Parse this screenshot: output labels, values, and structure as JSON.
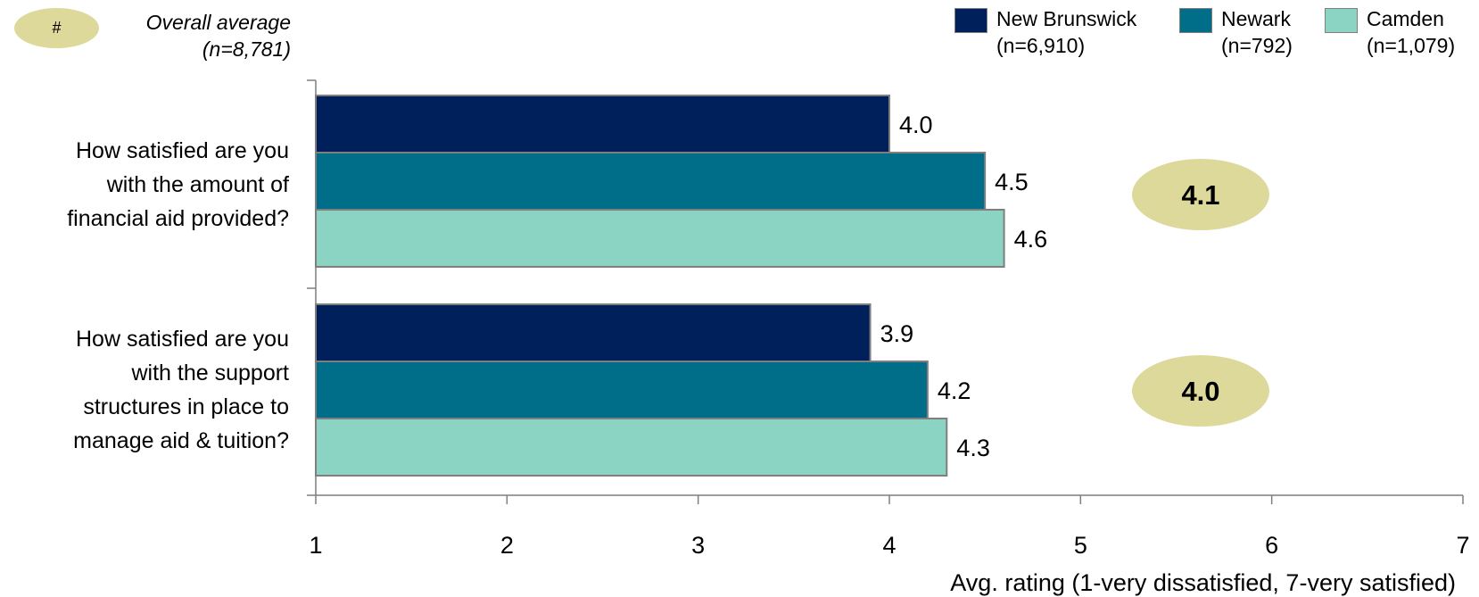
{
  "avg_key": {
    "symbol": "#",
    "label_line1": "Overall average",
    "label_line2": "(n=8,781)"
  },
  "legend": [
    {
      "name": "New Brunswick",
      "n": "(n=6,910)",
      "color": "#00205b"
    },
    {
      "name": "Newark",
      "n": "(n=792)",
      "color": "#006e89"
    },
    {
      "name": "Camden",
      "n": "(n=1,079)",
      "color": "#8bd3c3"
    }
  ],
  "colors": {
    "avg_ellipse": "#ddd99a",
    "bar_border": "#7f7f7f",
    "axis": "#7f7f7f"
  },
  "chart_data": {
    "type": "bar",
    "orientation": "horizontal",
    "categories": [
      "How satisfied are you with the amount of financial aid provided?",
      "How satisfied are you with the support structures in place to manage aid & tuition?"
    ],
    "category_lines": [
      [
        "How satisfied are you",
        "with the amount of",
        "financial aid provided?"
      ],
      [
        "How satisfied are you",
        "with the support",
        "structures in place to",
        "manage aid & tuition?"
      ]
    ],
    "series": [
      {
        "name": "New Brunswick",
        "values": [
          4.0,
          3.9
        ],
        "labels": [
          "4.0",
          "3.9"
        ]
      },
      {
        "name": "Newark",
        "values": [
          4.5,
          4.2
        ],
        "labels": [
          "4.5",
          "4.2"
        ]
      },
      {
        "name": "Camden",
        "values": [
          4.6,
          4.3
        ],
        "labels": [
          "4.6",
          "4.3"
        ]
      }
    ],
    "overall_average": [
      4.1,
      4.0
    ],
    "overall_average_labels": [
      "4.1",
      "4.0"
    ],
    "xlabel": "Avg. rating (1-very dissatisfied, 7-very satisfied)",
    "xlim": [
      1,
      7
    ],
    "xticks": [
      "1",
      "2",
      "3",
      "4",
      "5",
      "6",
      "7"
    ],
    "grid": false,
    "legend_position": "top-right"
  }
}
